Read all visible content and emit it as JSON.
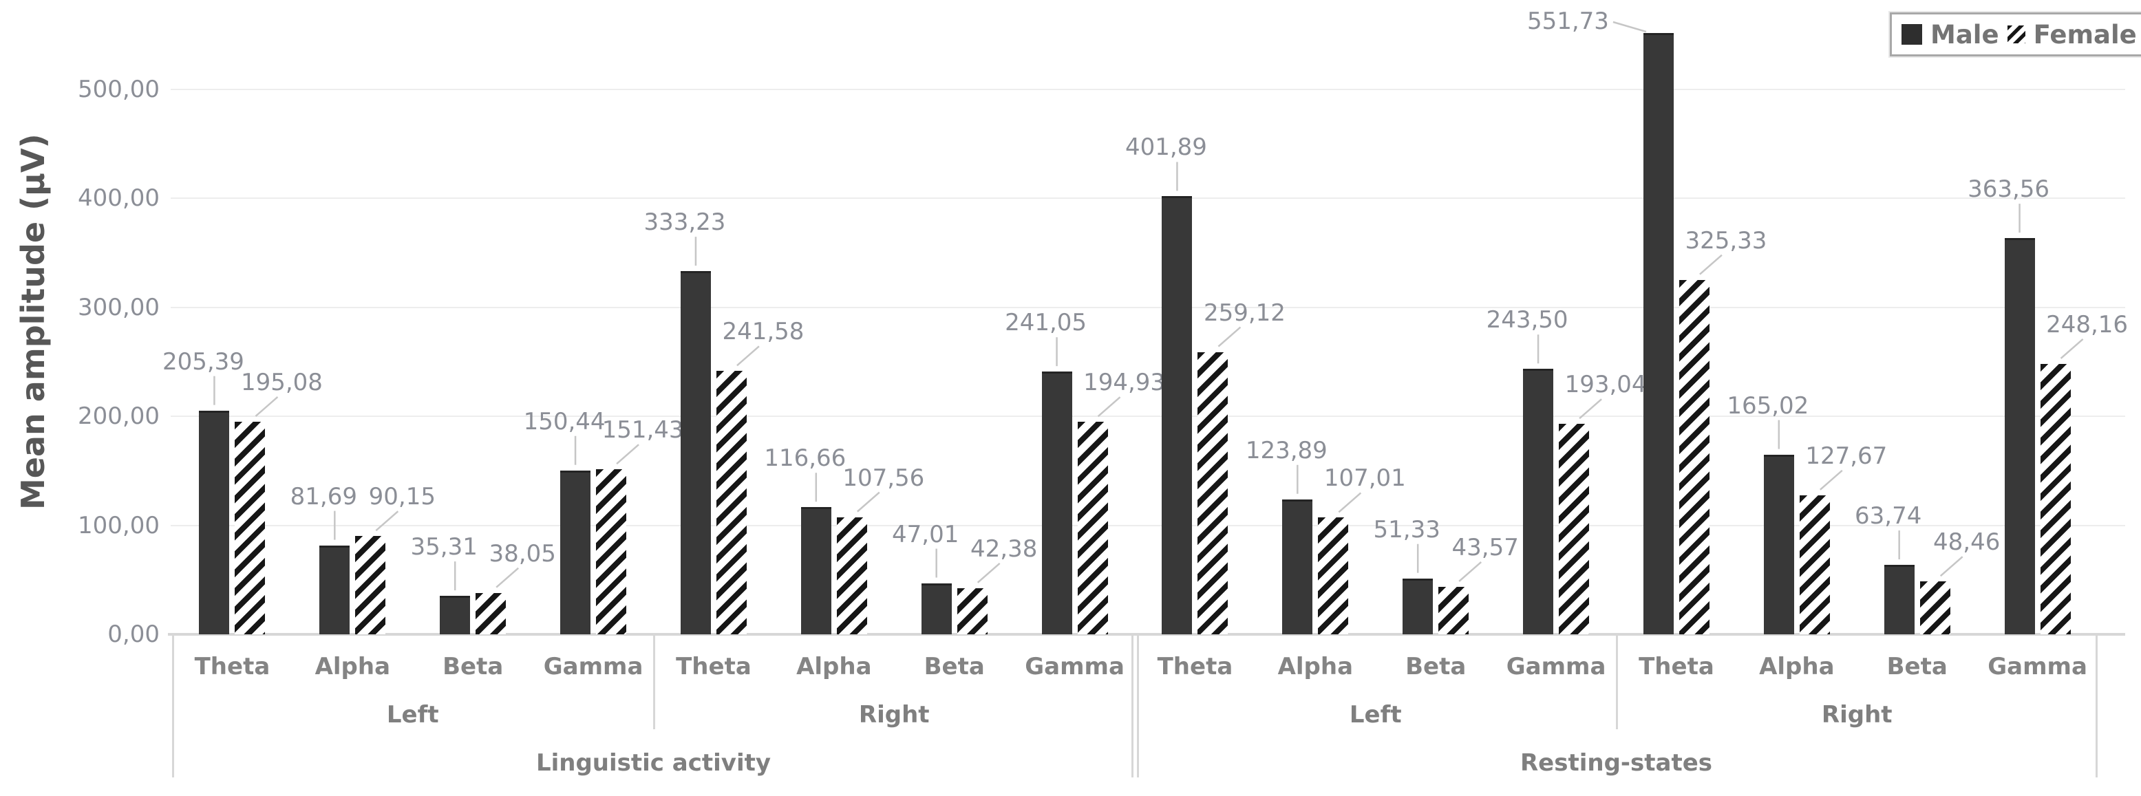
{
  "chart_data": {
    "type": "bar",
    "title": "",
    "ylabel": "Mean amplitude (μV)",
    "xlabel": "",
    "y_ticks": [
      "0,00",
      "100,00",
      "200,00",
      "300,00",
      "400,00",
      "500,00"
    ],
    "y_tick_values": [
      0,
      100,
      200,
      300,
      400,
      500
    ],
    "ylim": [
      0,
      560
    ],
    "grid": true,
    "decimal_separator": ",",
    "legend_position": "top-right",
    "legend": {
      "male": "Male",
      "female": "Female"
    },
    "series_styles": {
      "male": "solid-dark",
      "female": "diagonal-hatch"
    },
    "colors": {
      "bar": "#383838",
      "hatch_stripe": "#161616",
      "value_label": "#8b8e96",
      "grid": "#ededed",
      "axis_border": "#d7d7d7",
      "axis_text": "#848484"
    },
    "bands": [
      "Theta",
      "Alpha",
      "Beta",
      "Gamma"
    ],
    "groups": [
      {
        "activity": "Linguistic activity",
        "side": "Left",
        "bands": [
          "Theta",
          "Alpha",
          "Beta",
          "Gamma"
        ],
        "male": [
          205.39,
          81.69,
          35.31,
          150.44
        ],
        "female": [
          195.08,
          90.15,
          38.05,
          151.43
        ]
      },
      {
        "activity": "Linguistic activity",
        "side": "Right",
        "bands": [
          "Theta",
          "Alpha",
          "Beta",
          "Gamma"
        ],
        "male": [
          333.23,
          116.66,
          47.01,
          241.05
        ],
        "female": [
          241.58,
          107.56,
          42.38,
          194.93
        ]
      },
      {
        "activity": "Resting-states",
        "side": "Left",
        "bands": [
          "Theta",
          "Alpha",
          "Beta",
          "Gamma"
        ],
        "male": [
          401.89,
          123.89,
          51.33,
          243.5
        ],
        "female": [
          259.12,
          107.01,
          43.57,
          193.04
        ]
      },
      {
        "activity": "Resting-states",
        "side": "Right",
        "bands": [
          "Theta",
          "Alpha",
          "Beta",
          "Gamma"
        ],
        "male": [
          551.73,
          165.02,
          63.74,
          363.56
        ],
        "female": [
          325.33,
          127.67,
          48.46,
          248.16
        ]
      }
    ]
  }
}
